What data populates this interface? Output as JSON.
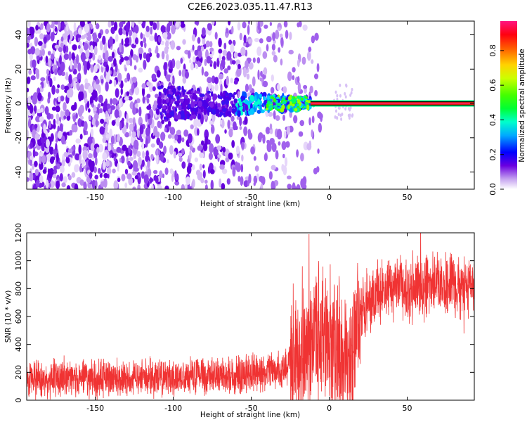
{
  "title": "C2E6.2023.035.11.47.R13",
  "chart_data": [
    {
      "type": "heatmap",
      "xlabel": "Height of straight line (km)",
      "ylabel": "Frequency (Hz)",
      "xlim": [
        -194,
        93
      ],
      "ylim": [
        -50,
        48
      ],
      "xticks": [
        -150,
        -100,
        -50,
        0,
        50
      ],
      "yticks": [
        -40,
        -20,
        0,
        20,
        40
      ],
      "grid": false,
      "colorbar": {
        "label": "Normalized spectral amplitude",
        "range": [
          0,
          0.97
        ],
        "ticks": [
          "0.0",
          "0.2",
          "0.4",
          "0.6",
          "0.8"
        ],
        "colormap": "gist_ncar_r"
      },
      "description_points": {
        "noise_region_x": [
          -194,
          -20
        ],
        "carrier_frequency": 0,
        "carrier_start_x": -12,
        "carrier_amplitude": 0.97
      }
    },
    {
      "type": "line",
      "xlabel": "Height of straight line (km)",
      "ylabel": "SNR (10 * v/v)",
      "xlim": [
        -194,
        93
      ],
      "ylim": [
        0,
        1200
      ],
      "xticks": [
        -150,
        -100,
        -50,
        0,
        50
      ],
      "yticks": [
        0,
        200,
        400,
        600,
        800,
        1000,
        1200
      ],
      "color": "#f03333",
      "series": [
        {
          "x": [
            -194,
            -150,
            -100,
            -50,
            -30,
            -22,
            -15,
            -5,
            5,
            12,
            20,
            30,
            40,
            60,
            80,
            93
          ],
          "values": [
            150,
            155,
            160,
            185,
            210,
            320,
            420,
            470,
            360,
            300,
            640,
            780,
            800,
            810,
            820,
            830
          ]
        }
      ]
    }
  ]
}
